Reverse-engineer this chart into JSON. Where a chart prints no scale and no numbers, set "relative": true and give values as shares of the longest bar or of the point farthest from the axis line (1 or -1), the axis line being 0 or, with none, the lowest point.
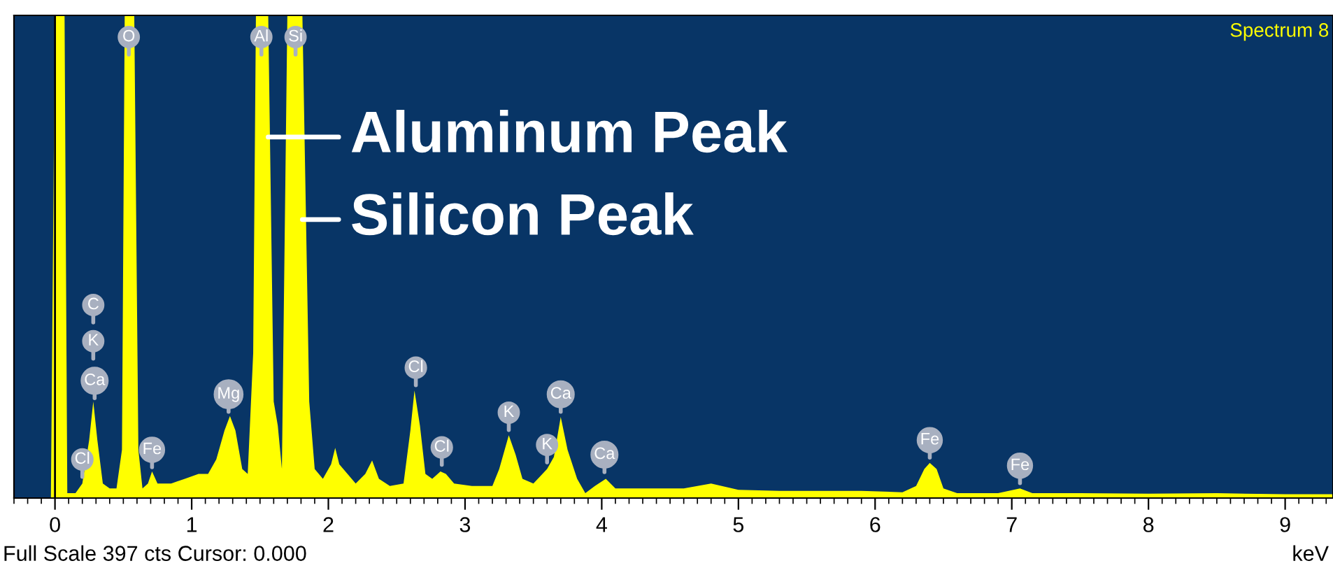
{
  "chart_data": {
    "type": "area",
    "relative": true,
    "xlabel": "keV",
    "tick_labels": "x",
    "grid": false,
    "xlim": [
      -0.3,
      9.35
    ],
    "xticks": [
      0,
      1,
      2,
      3,
      4,
      5,
      6,
      7,
      8,
      9
    ],
    "x": [
      -0.03,
      0.0,
      0.07,
      0.09,
      0.15,
      0.2,
      0.25,
      0.28,
      0.31,
      0.35,
      0.4,
      0.45,
      0.49,
      0.51,
      0.58,
      0.61,
      0.64,
      0.68,
      0.71,
      0.75,
      0.85,
      0.95,
      1.05,
      1.12,
      1.18,
      1.24,
      1.28,
      1.32,
      1.37,
      1.41,
      1.45,
      1.47,
      1.56,
      1.6,
      1.63,
      1.66,
      1.7,
      1.81,
      1.86,
      1.9,
      1.96,
      2.02,
      2.05,
      2.08,
      2.14,
      2.2,
      2.27,
      2.32,
      2.37,
      2.45,
      2.55,
      2.6,
      2.63,
      2.67,
      2.71,
      2.76,
      2.82,
      2.86,
      2.92,
      3.05,
      3.2,
      3.25,
      3.32,
      3.37,
      3.42,
      3.5,
      3.6,
      3.65,
      3.7,
      3.75,
      3.82,
      3.88,
      3.95,
      4.03,
      4.1,
      4.3,
      4.6,
      4.8,
      5.0,
      5.3,
      5.6,
      5.9,
      6.2,
      6.3,
      6.36,
      6.4,
      6.45,
      6.5,
      6.6,
      6.9,
      7.06,
      7.15,
      7.5,
      8.0,
      8.5,
      9.0,
      9.35
    ],
    "series": [
      {
        "color": "#ffff00",
        "values": [
          0,
          1,
          1,
          0.01,
          0.01,
          0.03,
          0.12,
          0.2,
          0.12,
          0.03,
          0.02,
          0.02,
          0.1,
          1,
          1,
          0.1,
          0.02,
          0.03,
          0.055,
          0.03,
          0.03,
          0.04,
          0.05,
          0.05,
          0.08,
          0.14,
          0.17,
          0.14,
          0.06,
          0.05,
          0.3,
          1,
          1,
          0.2,
          0.15,
          0.06,
          1,
          1,
          0.2,
          0.06,
          0.04,
          0.07,
          0.104,
          0.07,
          0.05,
          0.03,
          0.05,
          0.078,
          0.04,
          0.025,
          0.03,
          0.14,
          0.223,
          0.15,
          0.05,
          0.04,
          0.055,
          0.05,
          0.03,
          0.025,
          0.025,
          0.06,
          0.13,
          0.09,
          0.04,
          0.03,
          0.06,
          0.085,
          0.168,
          0.1,
          0.04,
          0.01,
          0.025,
          0.04,
          0.02,
          0.02,
          0.02,
          0.03,
          0.017,
          0.015,
          0.015,
          0.015,
          0.012,
          0.025,
          0.06,
          0.073,
          0.06,
          0.02,
          0.01,
          0.01,
          0.02,
          0.01,
          0.01,
          0.009,
          0.01,
          0.008,
          0.008
        ]
      }
    ],
    "ref_lines": [
      {
        "axis": "x",
        "value": 0,
        "color": "#000000"
      }
    ],
    "annotations": [
      {
        "text": "O",
        "x": 0.54,
        "y": 0.955
      },
      {
        "text": "Al",
        "x": 1.51,
        "y": 0.955
      },
      {
        "text": "Si",
        "x": 1.76,
        "y": 0.955
      },
      {
        "text": "C",
        "x": 0.28,
        "y": 0.4
      },
      {
        "text": "K",
        "x": 0.28,
        "y": 0.325
      },
      {
        "text": "Ca",
        "x": 0.29,
        "y": 0.243
      },
      {
        "text": "Cl",
        "x": 0.2,
        "y": 0.08
      },
      {
        "text": "Fe",
        "x": 0.71,
        "y": 0.1
      },
      {
        "text": "Mg",
        "x": 1.27,
        "y": 0.215
      },
      {
        "text": "Cl",
        "x": 2.64,
        "y": 0.27
      },
      {
        "text": "Cl",
        "x": 2.83,
        "y": 0.105
      },
      {
        "text": "K",
        "x": 3.32,
        "y": 0.177
      },
      {
        "text": "K",
        "x": 3.6,
        "y": 0.11
      },
      {
        "text": "Ca",
        "x": 3.7,
        "y": 0.215
      },
      {
        "text": "Ca",
        "x": 4.02,
        "y": 0.09
      },
      {
        "text": "Fe",
        "x": 6.4,
        "y": 0.12
      },
      {
        "text": "Fe",
        "x": 7.06,
        "y": 0.067
      },
      {
        "text": "Aluminum Peak",
        "x": 1.56,
        "y": 0.748
      },
      {
        "text": "Silicon Peak",
        "x": 1.81,
        "y": 0.577
      },
      "Spectrum 8",
      "Full Scale 397 cts Cursor: 0.000"
    ]
  }
}
